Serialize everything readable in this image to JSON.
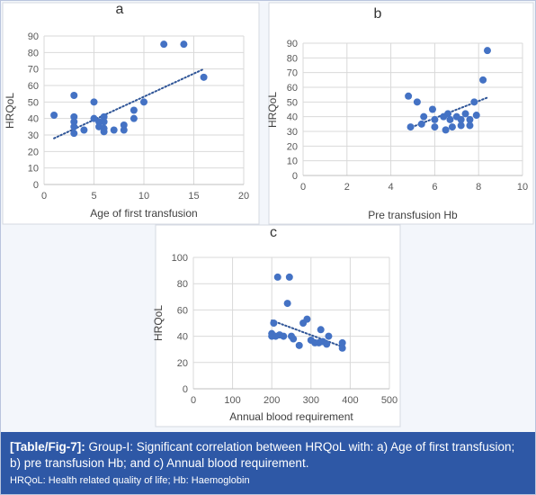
{
  "chart_data": [
    {
      "type": "scatter",
      "panel": "a",
      "xlabel": "Age of first transfusion",
      "ylabel": "HRQoL",
      "xlim": [
        0,
        20
      ],
      "ylim": [
        0,
        90
      ],
      "xticks": [
        0,
        5,
        10,
        15,
        20
      ],
      "yticks": [
        0,
        10,
        20,
        30,
        40,
        50,
        60,
        70,
        80,
        90
      ],
      "grid": true,
      "trendline": {
        "style": "dotted linear",
        "x": [
          1,
          16
        ],
        "y": [
          28,
          70
        ]
      },
      "points": [
        {
          "x": 1,
          "y": 42
        },
        {
          "x": 3,
          "y": 54
        },
        {
          "x": 3,
          "y": 41
        },
        {
          "x": 3,
          "y": 38
        },
        {
          "x": 3,
          "y": 35
        },
        {
          "x": 3,
          "y": 31
        },
        {
          "x": 4,
          "y": 33
        },
        {
          "x": 5,
          "y": 50
        },
        {
          "x": 5,
          "y": 40
        },
        {
          "x": 5.5,
          "y": 38
        },
        {
          "x": 5.5,
          "y": 35
        },
        {
          "x": 6,
          "y": 41
        },
        {
          "x": 6,
          "y": 38
        },
        {
          "x": 6,
          "y": 34
        },
        {
          "x": 6,
          "y": 32
        },
        {
          "x": 7,
          "y": 33
        },
        {
          "x": 8,
          "y": 36
        },
        {
          "x": 8,
          "y": 33
        },
        {
          "x": 9,
          "y": 45
        },
        {
          "x": 9,
          "y": 40
        },
        {
          "x": 10,
          "y": 50
        },
        {
          "x": 12,
          "y": 85
        },
        {
          "x": 14,
          "y": 85
        },
        {
          "x": 16,
          "y": 65
        }
      ]
    },
    {
      "type": "scatter",
      "panel": "b",
      "xlabel": "Pre transfusion Hb",
      "ylabel": "HRQoL",
      "xlim": [
        0,
        10
      ],
      "ylim": [
        0,
        90
      ],
      "xticks": [
        0,
        2,
        4,
        6,
        8,
        10
      ],
      "yticks": [
        0,
        10,
        20,
        30,
        40,
        50,
        60,
        70,
        80,
        90
      ],
      "grid": true,
      "trendline": {
        "style": "dotted linear",
        "x": [
          4.8,
          8.4
        ],
        "y": [
          32,
          53
        ]
      },
      "points": [
        {
          "x": 4.8,
          "y": 54
        },
        {
          "x": 4.9,
          "y": 33
        },
        {
          "x": 5.2,
          "y": 50
        },
        {
          "x": 5.4,
          "y": 35
        },
        {
          "x": 5.5,
          "y": 40
        },
        {
          "x": 5.9,
          "y": 45
        },
        {
          "x": 6.0,
          "y": 38
        },
        {
          "x": 6.0,
          "y": 33
        },
        {
          "x": 6.4,
          "y": 40
        },
        {
          "x": 6.5,
          "y": 31
        },
        {
          "x": 6.6,
          "y": 42
        },
        {
          "x": 6.7,
          "y": 38
        },
        {
          "x": 6.8,
          "y": 33
        },
        {
          "x": 7.0,
          "y": 40
        },
        {
          "x": 7.2,
          "y": 38
        },
        {
          "x": 7.2,
          "y": 34
        },
        {
          "x": 7.4,
          "y": 42
        },
        {
          "x": 7.6,
          "y": 38
        },
        {
          "x": 7.6,
          "y": 34
        },
        {
          "x": 7.8,
          "y": 50
        },
        {
          "x": 7.9,
          "y": 41
        },
        {
          "x": 8.2,
          "y": 65
        },
        {
          "x": 8.4,
          "y": 85
        }
      ]
    },
    {
      "type": "scatter",
      "panel": "c",
      "xlabel": "Annual blood requirement",
      "ylabel": "HRQoL",
      "xlim": [
        0,
        500
      ],
      "ylim": [
        0,
        100
      ],
      "xticks": [
        0,
        100,
        200,
        300,
        400,
        500
      ],
      "yticks": [
        0,
        20,
        40,
        60,
        80,
        100
      ],
      "grid": true,
      "trendline": {
        "style": "dotted linear",
        "x": [
          200,
          380
        ],
        "y": [
          52,
          32
        ]
      },
      "points": [
        {
          "x": 200,
          "y": 40
        },
        {
          "x": 200,
          "y": 42
        },
        {
          "x": 205,
          "y": 50
        },
        {
          "x": 210,
          "y": 40
        },
        {
          "x": 215,
          "y": 85
        },
        {
          "x": 220,
          "y": 41
        },
        {
          "x": 230,
          "y": 40
        },
        {
          "x": 240,
          "y": 65
        },
        {
          "x": 245,
          "y": 85
        },
        {
          "x": 250,
          "y": 40
        },
        {
          "x": 255,
          "y": 38
        },
        {
          "x": 270,
          "y": 33
        },
        {
          "x": 280,
          "y": 50
        },
        {
          "x": 290,
          "y": 53
        },
        {
          "x": 300,
          "y": 37
        },
        {
          "x": 310,
          "y": 35
        },
        {
          "x": 320,
          "y": 35
        },
        {
          "x": 325,
          "y": 45
        },
        {
          "x": 330,
          "y": 36
        },
        {
          "x": 340,
          "y": 34
        },
        {
          "x": 345,
          "y": 40
        },
        {
          "x": 380,
          "y": 35
        },
        {
          "x": 380,
          "y": 31
        }
      ]
    }
  ],
  "panels": [
    {
      "letter": "a"
    },
    {
      "letter": "b"
    },
    {
      "letter": "c"
    }
  ],
  "colors": {
    "point": "#4472c4",
    "trendline": "#2f5597",
    "grid": "#d9d9d9",
    "panel_bg": "#ffffff",
    "page_bg": "#f3f6fb",
    "caption_bg": "#2e58a6"
  },
  "caption": {
    "label": "[Table/Fig-7]:",
    "text": "Group-I: Significant correlation between HRQoL with: a) Age of first transfusion; b) pre transfusion Hb; and c) Annual blood requirement.",
    "footnote": "HRQoL: Health related quality of life; Hb: Haemoglobin"
  }
}
